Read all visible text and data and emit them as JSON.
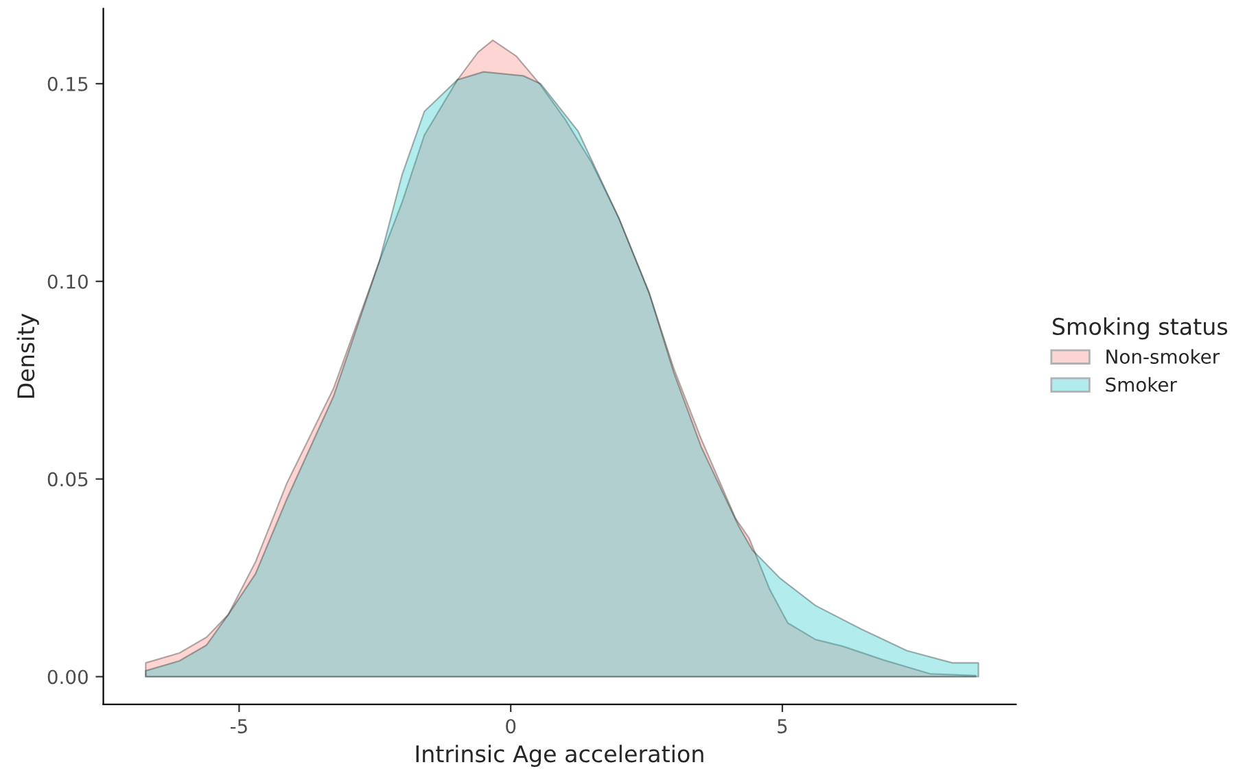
{
  "chart_data": {
    "type": "area",
    "xlabel": "Intrinsic Age acceleration",
    "ylabel": "Density",
    "legend_title": "Smoking status",
    "legend": "right",
    "grid": false,
    "xlim": [
      -7.5,
      9.3
    ],
    "ylim": [
      -0.007,
      0.169
    ],
    "xticks": [
      {
        "value": -5,
        "label": "-5"
      },
      0,
      5
    ],
    "yticks": [
      {
        "value": 0,
        "label": "0.00"
      },
      {
        "value": 0.05,
        "label": "0.05"
      },
      {
        "value": 0.1,
        "label": "0.10"
      },
      {
        "value": 0.15,
        "label": "0.15"
      }
    ],
    "series": [
      {
        "name": "Non-smoker",
        "color": "#f8766d",
        "x": [
          -6.72,
          -6.1,
          -5.6,
          -5.2,
          -4.7,
          -4.12,
          -3.26,
          -2.42,
          -2.0,
          -1.59,
          -0.98,
          -0.6,
          -0.33,
          0.1,
          0.53,
          1.0,
          1.49,
          1.99,
          2.55,
          3.0,
          3.51,
          4.14,
          4.39,
          4.77,
          5.1,
          5.61,
          6.11,
          6.87,
          7.73,
          8.56
        ],
        "values": [
          0.0035,
          0.006,
          0.01,
          0.0157,
          0.029,
          0.049,
          0.073,
          0.105,
          0.12,
          0.137,
          0.151,
          0.158,
          0.161,
          0.157,
          0.15,
          0.141,
          0.13,
          0.116,
          0.097,
          0.078,
          0.06,
          0.04,
          0.035,
          0.022,
          0.0136,
          0.0094,
          0.0077,
          0.0042,
          0.0007,
          0.0003
        ]
      },
      {
        "name": "Smoker",
        "color": "#00bfc4",
        "x": [
          -6.72,
          -6.1,
          -5.6,
          -5.2,
          -4.7,
          -4.12,
          -3.26,
          -2.42,
          -2.0,
          -1.59,
          -0.98,
          -0.5,
          0.23,
          0.55,
          1.24,
          1.99,
          2.55,
          3.0,
          3.51,
          4.2,
          4.45,
          4.95,
          5.61,
          6.46,
          7.29,
          8.13,
          8.61
        ],
        "values": [
          0.0015,
          0.004,
          0.008,
          0.0157,
          0.026,
          0.045,
          0.071,
          0.105,
          0.127,
          0.143,
          0.151,
          0.153,
          0.152,
          0.15,
          0.138,
          0.116,
          0.097,
          0.077,
          0.058,
          0.038,
          0.032,
          0.025,
          0.018,
          0.012,
          0.0066,
          0.0035,
          0.0035
        ]
      }
    ]
  }
}
